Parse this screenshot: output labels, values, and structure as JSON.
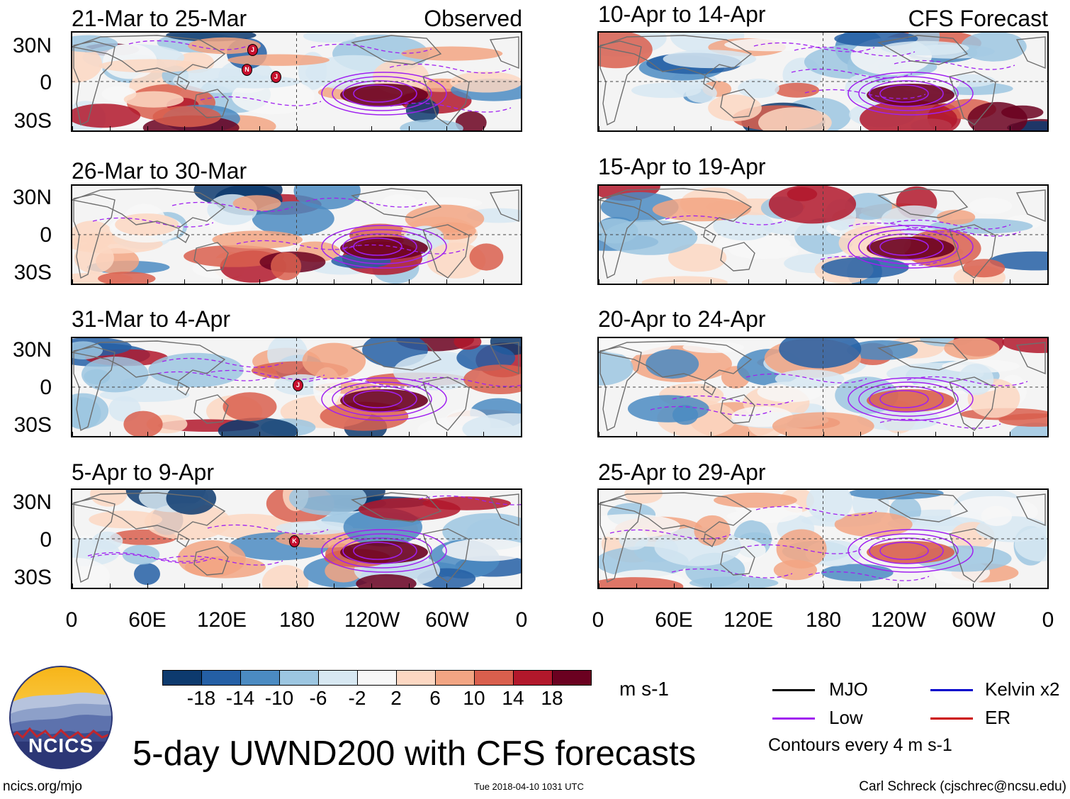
{
  "observed_label": "Observed",
  "forecast_label": "CFS Forecast",
  "panels_observed": [
    {
      "title": "21-Mar to 25-Mar"
    },
    {
      "title": "26-Mar to 30-Mar"
    },
    {
      "title": "31-Mar to 4-Apr"
    },
    {
      "title": "5-Apr to 9-Apr"
    }
  ],
  "panels_forecast": [
    {
      "title": "10-Apr to 14-Apr"
    },
    {
      "title": "15-Apr to 19-Apr"
    },
    {
      "title": "20-Apr to 24-Apr"
    },
    {
      "title": "25-Apr to 29-Apr"
    }
  ],
  "y_labels": [
    "30N",
    "0",
    "30S"
  ],
  "x_labels": [
    "0",
    "60E",
    "120E",
    "180",
    "120W",
    "60W",
    "0"
  ],
  "colorbar": {
    "colors": [
      "#0d3a6e",
      "#245fa5",
      "#4b8bc2",
      "#9cc6e1",
      "#d7e8f2",
      "#f7f7f7",
      "#fcd7c2",
      "#f2a583",
      "#d95f4d",
      "#b2182b",
      "#6b0120"
    ],
    "labels": [
      "-18",
      "-14",
      "-10",
      "-6",
      "-2",
      "2",
      "6",
      "10",
      "14",
      "18"
    ],
    "units": "m s-1"
  },
  "legend": {
    "items": [
      {
        "label": "MJO",
        "color": "#000000"
      },
      {
        "label": "Kelvin x2",
        "color": "#0000cc"
      },
      {
        "label": "Low",
        "color": "#a020f0"
      },
      {
        "label": "ER",
        "color": "#cc0000"
      }
    ],
    "contour_note": "Contours every 4 m s-1"
  },
  "logo_text": "NCICS",
  "main_title": "5-day UWND200 with CFS forecasts",
  "footer": {
    "url": "ncics.org/mjo",
    "timestamp": "Tue 2018-04-10 1031 UTC",
    "author": "Carl Schreck (cjschrec@ncsu.edu)"
  },
  "storm_markers": [
    {
      "panel": 0,
      "label": "J"
    },
    {
      "panel": 0,
      "label": "N"
    },
    {
      "panel": 0,
      "label": "J"
    },
    {
      "panel": 2,
      "label": "J"
    },
    {
      "panel": 3,
      "label": "K"
    }
  ]
}
